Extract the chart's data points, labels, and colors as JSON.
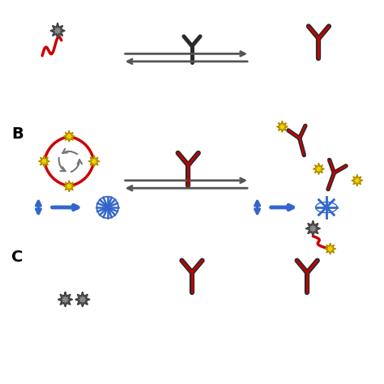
{
  "bg_color": "#ffffff",
  "label_B": "B",
  "label_C": "C",
  "antibody_dark": "#2a2a2a",
  "antibody_red": "#cc0000",
  "star_yellow": "#f0d000",
  "star_gray": "#888888",
  "arrow_gray": "#555555",
  "arrow_blue": "#3366cc"
}
